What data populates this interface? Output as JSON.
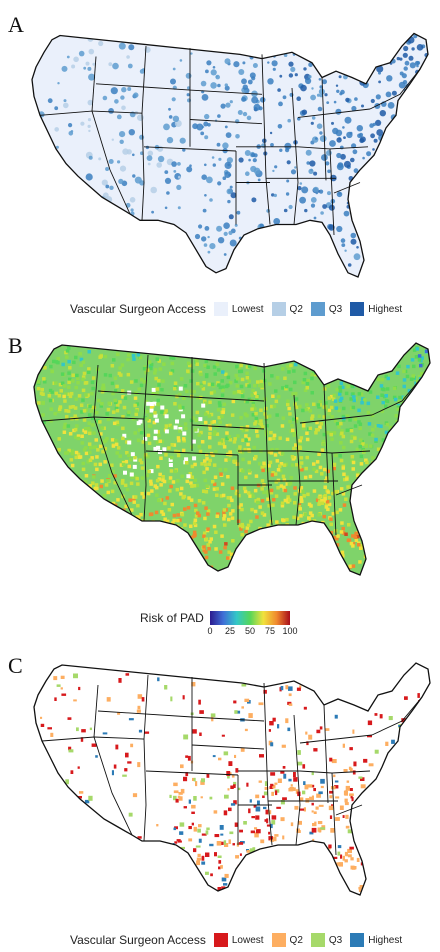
{
  "panels": {
    "a": {
      "letter": "A"
    },
    "b": {
      "letter": "B"
    },
    "c": {
      "letter": "C"
    }
  },
  "legend_a": {
    "title": "Vascular Surgeon Access",
    "items": [
      {
        "label": "Lowest",
        "color": "#eaf0fb"
      },
      {
        "label": "Q2",
        "color": "#b6cfe6"
      },
      {
        "label": "Q3",
        "color": "#5e9ccf"
      },
      {
        "label": "Highest",
        "color": "#1f5aa6"
      }
    ]
  },
  "legend_b": {
    "title": "Risk of PAD",
    "ticks": [
      "0",
      "25",
      "50",
      "75",
      "100"
    ],
    "gradient": [
      "#2b1b8f",
      "#3f6fd6",
      "#33c7c7",
      "#55d65a",
      "#f1e23c",
      "#f0892e",
      "#a80d1b"
    ]
  },
  "legend_c": {
    "title": "Vascular Surgeon Access",
    "items": [
      {
        "label": "Lowest",
        "color": "#d7191c"
      },
      {
        "label": "Q2",
        "color": "#fdae61"
      },
      {
        "label": "Q3",
        "color": "#a6d96a"
      },
      {
        "label": "Highest",
        "color": "#2c7bb6"
      }
    ]
  }
}
